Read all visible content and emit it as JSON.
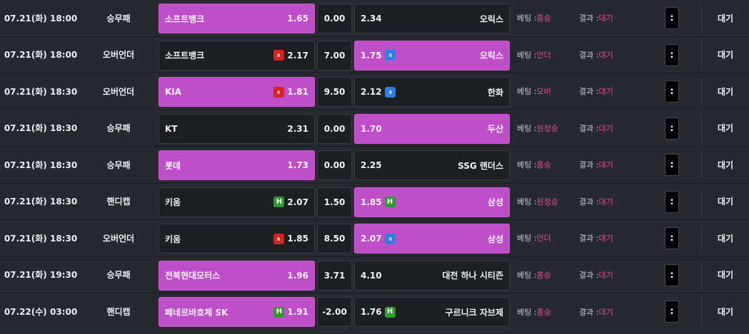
{
  "labels": {
    "bet_prefix": "베팅 : ",
    "result_prefix": "결과 : ",
    "menu_glyph": ":"
  },
  "colors": {
    "selected": "#bf4fc9",
    "up_icon": "#d92020",
    "down_icon": "#2a7fe0",
    "handicap_icon": "#2f9a2f",
    "pink_text": "#e0508a"
  },
  "rows": [
    {
      "datetime": "07.21(화) 18:00",
      "game_type": "승무패",
      "home": {
        "name": "소프트뱅크",
        "odds": "1.65",
        "icon": "",
        "selected": true
      },
      "mid": "0.00",
      "away": {
        "name": "오릭스",
        "odds": "2.34",
        "icon": "",
        "selected": false
      },
      "bet": "홈승",
      "result": "대기",
      "status": "대기"
    },
    {
      "datetime": "07.21(화) 18:00",
      "game_type": "오버언더",
      "home": {
        "name": "소프트뱅크",
        "odds": "2.17",
        "icon": "up-arrow-icon",
        "selected": false
      },
      "mid": "7.00",
      "away": {
        "name": "오릭스",
        "odds": "1.75",
        "icon": "down-arrow-icon",
        "selected": true
      },
      "bet": "언더",
      "result": "대기",
      "status": "대기"
    },
    {
      "datetime": "07.21(화) 18:30",
      "game_type": "오버언더",
      "home": {
        "name": "KIA",
        "odds": "1.81",
        "icon": "up-arrow-icon",
        "selected": true
      },
      "mid": "9.50",
      "away": {
        "name": "한화",
        "odds": "2.12",
        "icon": "down-arrow-icon",
        "selected": false
      },
      "bet": "오버",
      "result": "대기",
      "status": "대기"
    },
    {
      "datetime": "07.21(화) 18:30",
      "game_type": "승무패",
      "home": {
        "name": "KT",
        "odds": "2.31",
        "icon": "",
        "selected": false
      },
      "mid": "0.00",
      "away": {
        "name": "두산",
        "odds": "1.70",
        "icon": "",
        "selected": true
      },
      "bet": "원정승",
      "result": "대기",
      "status": "대기"
    },
    {
      "datetime": "07.21(화) 18:30",
      "game_type": "승무패",
      "home": {
        "name": "롯데",
        "odds": "1.73",
        "icon": "",
        "selected": true
      },
      "mid": "0.00",
      "away": {
        "name": "SSG 랜더스",
        "odds": "2.25",
        "icon": "",
        "selected": false
      },
      "bet": "홈승",
      "result": "대기",
      "status": "대기"
    },
    {
      "datetime": "07.21(화) 18:30",
      "game_type": "핸디캡",
      "home": {
        "name": "키움",
        "odds": "2.07",
        "icon": "handicap-icon",
        "selected": false
      },
      "mid": "1.50",
      "away": {
        "name": "삼성",
        "odds": "1.85",
        "icon": "handicap-icon",
        "selected": true
      },
      "bet": "원정승",
      "result": "대기",
      "status": "대기"
    },
    {
      "datetime": "07.21(화) 18:30",
      "game_type": "오버언더",
      "home": {
        "name": "키움",
        "odds": "1.85",
        "icon": "up-arrow-icon",
        "selected": false
      },
      "mid": "8.50",
      "away": {
        "name": "삼성",
        "odds": "2.07",
        "icon": "down-arrow-icon",
        "selected": true
      },
      "bet": "언더",
      "result": "대기",
      "status": "대기"
    },
    {
      "datetime": "07.21(화) 19:30",
      "game_type": "승무패",
      "home": {
        "name": "전북현대모터스",
        "odds": "1.96",
        "icon": "",
        "selected": true
      },
      "mid": "3.71",
      "away": {
        "name": "대전 하나 시티즌",
        "odds": "4.10",
        "icon": "",
        "selected": false
      },
      "bet": "홈승",
      "result": "대기",
      "status": "대기"
    },
    {
      "datetime": "07.22(수) 03:00",
      "game_type": "핸디캡",
      "home": {
        "name": "페네르바흐체 SK",
        "odds": "1.91",
        "icon": "handicap-icon",
        "selected": true
      },
      "mid": "-2.00",
      "away": {
        "name": "구르니크 자브제",
        "odds": "1.76",
        "icon": "handicap-icon",
        "selected": false
      },
      "bet": "홈승",
      "result": "대기",
      "status": "대기"
    }
  ]
}
